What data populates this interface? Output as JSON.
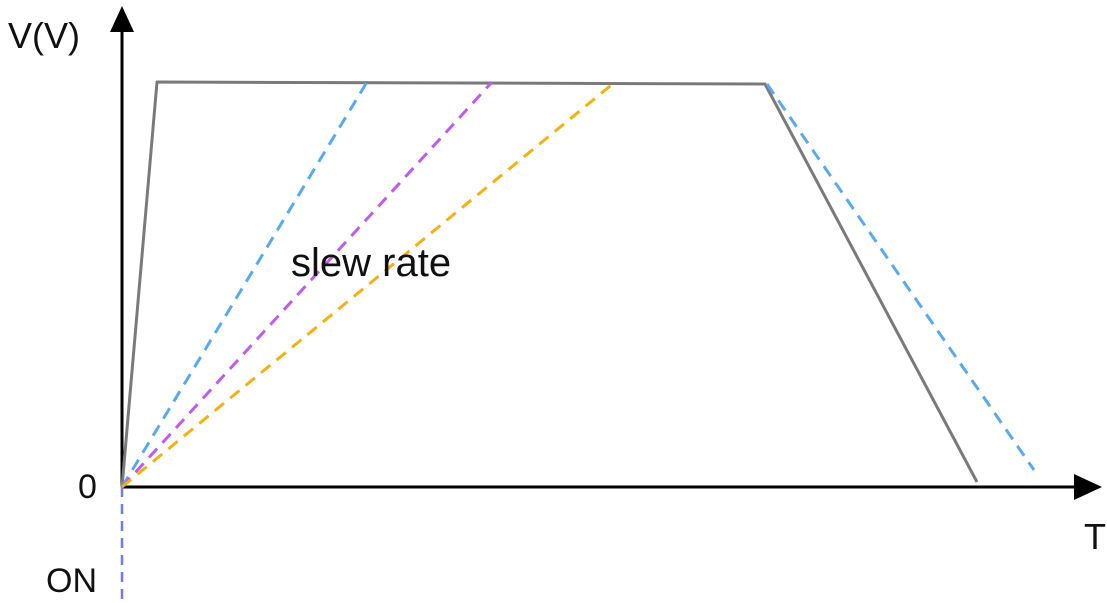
{
  "axes": {
    "y_label": "V(V)",
    "x_label": "T",
    "origin_label": "0",
    "trigger_label": "ON"
  },
  "annotation": {
    "text": "slew rate"
  },
  "colors": {
    "axis": "#000000",
    "trapezoid": "#7a7a7a",
    "blue_dashed": "#5aa9f0",
    "purple_dashed": "#bf5cf0",
    "orange_dashed": "#f5b014",
    "on_marker": "#7777f0"
  }
}
